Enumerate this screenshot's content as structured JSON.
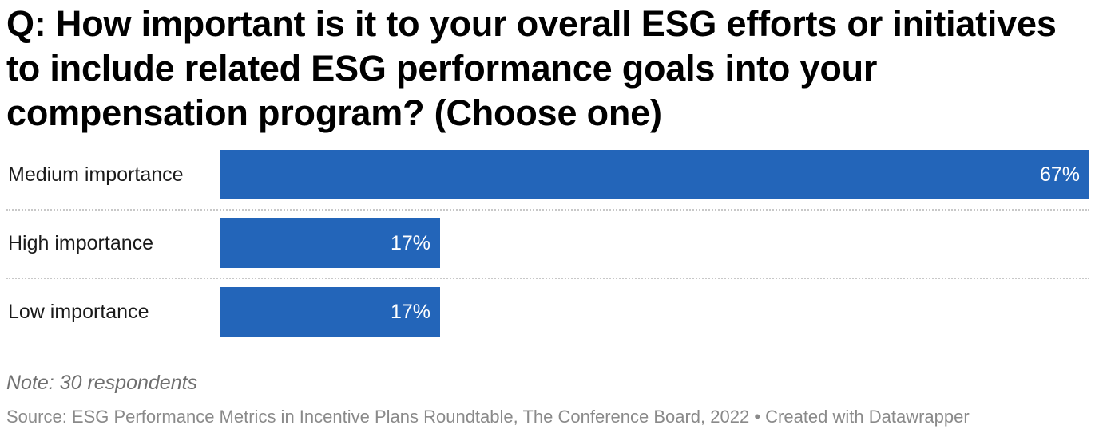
{
  "chart_data": {
    "type": "bar",
    "orientation": "horizontal",
    "title": "Q: How important is it to your overall ESG efforts or initiatives to include related ESG performance goals into your compensation program? (Choose one)",
    "categories": [
      "Medium importance",
      "High importance",
      "Low importance"
    ],
    "values": [
      67,
      17,
      17
    ],
    "value_labels": [
      "67%",
      "17%",
      "17%"
    ],
    "unit": "%",
    "xlim": [
      0,
      67
    ],
    "bar_color": "#2365b9",
    "grid": false
  },
  "note": "Note: 30 respondents",
  "source": "Source: ESG Performance Metrics in Incentive Plans Roundtable, The Conference Board, 2022 • Created with Datawrapper"
}
